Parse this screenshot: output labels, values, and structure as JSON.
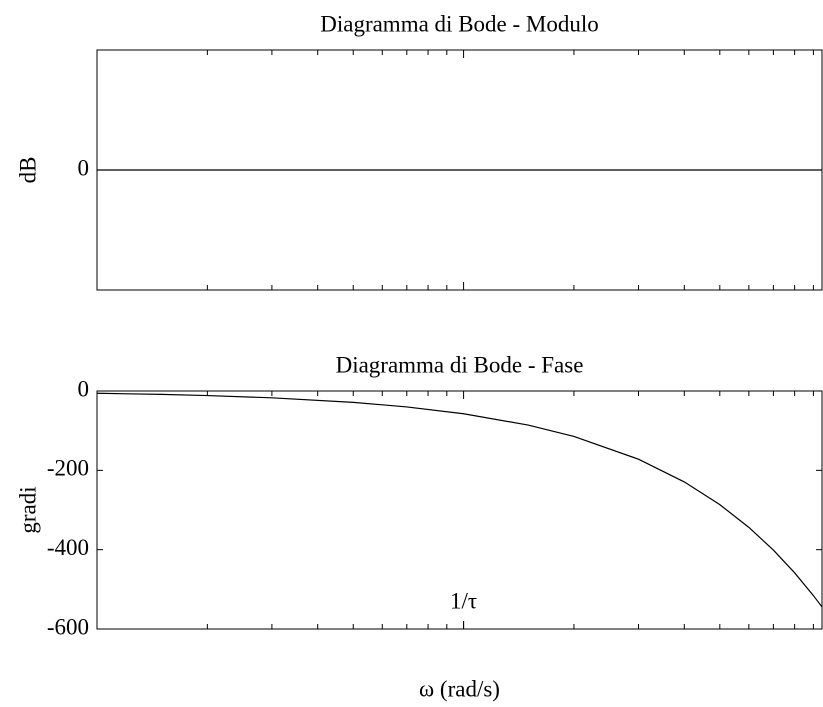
{
  "chart_data": [
    {
      "type": "line",
      "title": "Diagramma di Bode - Modulo",
      "ylabel": "dB",
      "log_x": true,
      "x": [
        0.1,
        9.5
      ],
      "series": [
        {
          "color": "#000000",
          "values": [
            0,
            0
          ]
        }
      ],
      "xlim": [
        0.1,
        9.5
      ],
      "ylim": [
        -1,
        1
      ],
      "yticks": [
        0
      ]
    },
    {
      "type": "line",
      "title": "Diagramma di Bode - Fase",
      "ylabel": "gradi",
      "xlabel": "ω (rad/s)",
      "log_x": true,
      "x": [
        0.1,
        0.15,
        0.2,
        0.3,
        0.5,
        0.7,
        1,
        1.5,
        2,
        3,
        4,
        5,
        6,
        7,
        8,
        9,
        9.5
      ],
      "series": [
        {
          "color": "#000000",
          "values": [
            -5.7,
            -8.6,
            -11.5,
            -17.2,
            -28.6,
            -40.1,
            -57.3,
            -85.9,
            -114.6,
            -171.9,
            -229.2,
            -286.5,
            -343.8,
            -401.1,
            -458.4,
            -515.7,
            -544.4
          ]
        }
      ],
      "xlim": [
        0.1,
        9.5
      ],
      "ylim": [
        -600,
        0
      ],
      "yticks": [
        0,
        -200,
        -400,
        -600
      ],
      "xticks": [
        {
          "value": 1,
          "label": "1/τ"
        }
      ]
    }
  ]
}
